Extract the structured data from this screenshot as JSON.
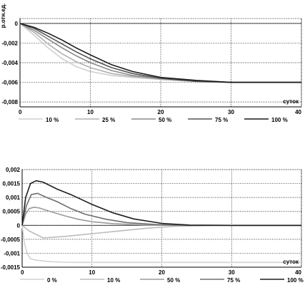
{
  "chart_data": [
    {
      "type": "line",
      "ylabel": "р.отн.ед.",
      "xlabel": "суток",
      "xlim": [
        0,
        40
      ],
      "ylim": [
        -0.0085,
        0.0005
      ],
      "xticks": [
        0,
        10,
        20,
        30,
        40
      ],
      "xtick_labels": [
        "0",
        "10",
        "20",
        "30",
        "40"
      ],
      "yticks": [
        0,
        -0.002,
        -0.004,
        -0.006,
        -0.008
      ],
      "ytick_labels": [
        "0",
        "-0,002",
        "-0,004",
        "-0,006",
        "-0,008"
      ],
      "grid": true,
      "legend_position": "bottom",
      "series": [
        {
          "name": "10 %",
          "color": "#cfcfcf",
          "points": [
            [
              0,
              0
            ],
            [
              2,
              -0.0012
            ],
            [
              4,
              -0.0025
            ],
            [
              6,
              -0.0036
            ],
            [
              8,
              -0.0044
            ],
            [
              10,
              -0.0049
            ],
            [
              13,
              -0.0053
            ],
            [
              16,
              -0.0055
            ],
            [
              20,
              -0.0057
            ],
            [
              25,
              -0.0059
            ],
            [
              30,
              -0.006
            ],
            [
              35,
              -0.006
            ],
            [
              40,
              -0.006
            ]
          ]
        },
        {
          "name": "25 %",
          "color": "#b0b0b0",
          "points": [
            [
              0,
              0
            ],
            [
              2,
              -0.0009
            ],
            [
              4,
              -0.0021
            ],
            [
              6,
              -0.0031
            ],
            [
              8,
              -0.0039
            ],
            [
              10,
              -0.0045
            ],
            [
              13,
              -0.0051
            ],
            [
              16,
              -0.0054
            ],
            [
              20,
              -0.0057
            ],
            [
              25,
              -0.0059
            ],
            [
              30,
              -0.006
            ],
            [
              35,
              -0.006
            ],
            [
              40,
              -0.006
            ]
          ]
        },
        {
          "name": "50 %",
          "color": "#8a8a8a",
          "points": [
            [
              0,
              0
            ],
            [
              2,
              -0.0007
            ],
            [
              4,
              -0.0016
            ],
            [
              6,
              -0.0025
            ],
            [
              8,
              -0.0033
            ],
            [
              10,
              -0.004
            ],
            [
              13,
              -0.0048
            ],
            [
              16,
              -0.0053
            ],
            [
              20,
              -0.0056
            ],
            [
              25,
              -0.0059
            ],
            [
              30,
              -0.006
            ],
            [
              35,
              -0.006
            ],
            [
              40,
              -0.006
            ]
          ]
        },
        {
          "name": "75 %",
          "color": "#555555",
          "points": [
            [
              0,
              0
            ],
            [
              2,
              -0.0005
            ],
            [
              4,
              -0.0013
            ],
            [
              6,
              -0.0021
            ],
            [
              8,
              -0.0029
            ],
            [
              10,
              -0.0036
            ],
            [
              13,
              -0.0045
            ],
            [
              16,
              -0.0051
            ],
            [
              20,
              -0.0056
            ],
            [
              25,
              -0.0059
            ],
            [
              30,
              -0.006
            ],
            [
              35,
              -0.006
            ],
            [
              40,
              -0.006
            ]
          ]
        },
        {
          "name": "100 %",
          "color": "#1a1a1a",
          "points": [
            [
              0,
              0
            ],
            [
              2,
              -0.0004
            ],
            [
              4,
              -0.001
            ],
            [
              6,
              -0.0017
            ],
            [
              8,
              -0.0025
            ],
            [
              10,
              -0.0032
            ],
            [
              13,
              -0.0042
            ],
            [
              16,
              -0.0049
            ],
            [
              20,
              -0.0055
            ],
            [
              25,
              -0.0058
            ],
            [
              30,
              -0.006
            ],
            [
              35,
              -0.006
            ],
            [
              40,
              -0.006
            ]
          ]
        }
      ]
    },
    {
      "type": "line",
      "ylabel": "",
      "xlabel": "суток",
      "xlim": [
        0,
        40
      ],
      "ylim": [
        -0.0015,
        0.002
      ],
      "xticks": [
        0,
        10,
        20,
        30,
        40
      ],
      "xtick_labels": [
        "0",
        "10",
        "20",
        "30",
        "40"
      ],
      "yticks": [
        0.002,
        0.0015,
        0.001,
        0.0005,
        0,
        -0.0005,
        -0.001,
        -0.0015
      ],
      "ytick_labels": [
        "0,002",
        "0,0015",
        "0,001",
        "0,0005",
        "0",
        "-0,0005",
        "-0,001",
        "-0,0015"
      ],
      "grid": true,
      "legend_position": "bottom",
      "series": [
        {
          "name": "0 %",
          "color": "#d2d2d2",
          "points": [
            [
              0,
              0
            ],
            [
              0.3,
              -0.0006
            ],
            [
              0.7,
              -0.001
            ],
            [
              1.2,
              -0.0012
            ],
            [
              2,
              -0.00125
            ],
            [
              4,
              -0.0013
            ],
            [
              6,
              -0.00132
            ],
            [
              8,
              -0.00133
            ],
            [
              12,
              -0.00133
            ],
            [
              16,
              -0.00133
            ],
            [
              20,
              -0.00133
            ],
            [
              30,
              -0.00133
            ],
            [
              40,
              -0.00133
            ]
          ]
        },
        {
          "name": "10 %",
          "color": "#bcbcbc",
          "points": [
            [
              0,
              0
            ],
            [
              1,
              -0.0002
            ],
            [
              3,
              -0.00045
            ],
            [
              6,
              -0.0004
            ],
            [
              10,
              -0.0003
            ],
            [
              14,
              -0.0002
            ],
            [
              18,
              -0.0001
            ],
            [
              22,
              -3e-05
            ],
            [
              28,
              0
            ],
            [
              40,
              0
            ]
          ]
        },
        {
          "name": "50 %",
          "color": "#9a9a9a",
          "points": [
            [
              0,
              0
            ],
            [
              0.5,
              0.0004
            ],
            [
              1,
              0.0006
            ],
            [
              1.7,
              0.00065
            ],
            [
              2.5,
              0.00062
            ],
            [
              4,
              0.0005
            ],
            [
              6,
              0.00035
            ],
            [
              8,
              0.00022
            ],
            [
              10,
              0.00013
            ],
            [
              13,
              6e-05
            ],
            [
              17,
              2e-05
            ],
            [
              22,
              0
            ],
            [
              40,
              0
            ]
          ]
        },
        {
          "name": "75 %",
          "color": "#6e6e6e",
          "points": [
            [
              0,
              0
            ],
            [
              0.6,
              0.0007
            ],
            [
              1.3,
              0.0011
            ],
            [
              2.2,
              0.00115
            ],
            [
              3.5,
              0.001
            ],
            [
              5,
              0.00085
            ],
            [
              7,
              0.0006
            ],
            [
              9,
              0.0004
            ],
            [
              12,
              0.00022
            ],
            [
              15,
              0.0001
            ],
            [
              19,
              3e-05
            ],
            [
              24,
              0
            ],
            [
              40,
              0
            ]
          ]
        },
        {
          "name": "100 %",
          "color": "#1e1e1e",
          "points": [
            [
              0,
              0
            ],
            [
              0.5,
              0.001
            ],
            [
              1.2,
              0.0015
            ],
            [
              2,
              0.0016
            ],
            [
              3,
              0.00155
            ],
            [
              5,
              0.0013
            ],
            [
              7,
              0.0011
            ],
            [
              10,
              0.00075
            ],
            [
              13,
              0.00045
            ],
            [
              16,
              0.00023
            ],
            [
              20,
              7e-05
            ],
            [
              24,
              1e-05
            ],
            [
              30,
              0
            ],
            [
              40,
              0
            ]
          ]
        }
      ]
    }
  ]
}
